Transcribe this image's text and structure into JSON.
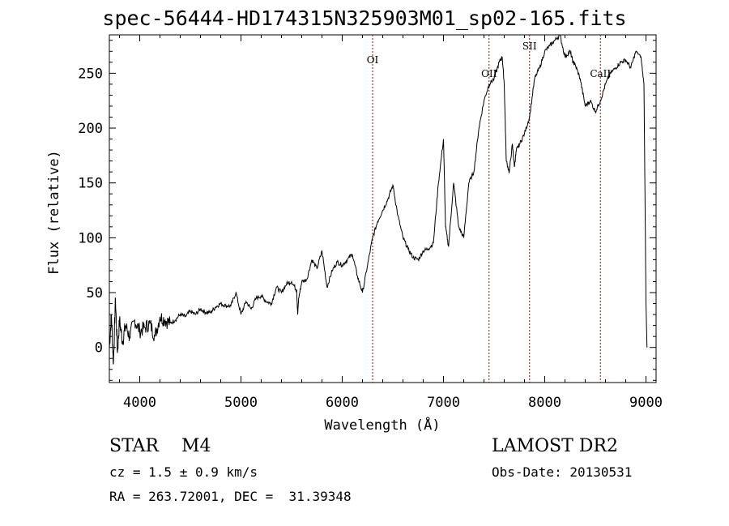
{
  "chart_data": {
    "type": "line",
    "title": "spec-56444-HD174315N325903M01_sp02-165.fits",
    "xlabel": "Wavelength (Å)",
    "ylabel": "Flux (relative)",
    "xlim": [
      3700,
      9100
    ],
    "ylim": [
      -32,
      285
    ],
    "xticks": [
      4000,
      5000,
      6000,
      7000,
      8000,
      9000
    ],
    "yticks": [
      0,
      50,
      100,
      150,
      200,
      250
    ],
    "grid": false,
    "line_color": "#000000",
    "marker_color": "#aa0000",
    "series": [
      {
        "x": [
          3700,
          3720,
          3740,
          3760,
          3780,
          3800,
          3830,
          3860,
          3900,
          3950,
          4000,
          4050,
          4100,
          4150,
          4200,
          4250,
          4300,
          4350,
          4400,
          4450,
          4500,
          4550,
          4600,
          4650,
          4700,
          4750,
          4800,
          4850,
          4900,
          4950,
          5000,
          5050,
          5100,
          5150,
          5200,
          5250,
          5300,
          5350,
          5400,
          5450,
          5500,
          5550,
          5560,
          5570,
          5600,
          5650,
          5700,
          5750,
          5800,
          5850,
          5900,
          5950,
          6000,
          6050,
          6100,
          6150,
          6200,
          6250,
          6300,
          6350,
          6400,
          6450,
          6500,
          6550,
          6600,
          6650,
          6700,
          6750,
          6800,
          6850,
          6900,
          6950,
          7000,
          7020,
          7050,
          7100,
          7150,
          7200,
          7250,
          7300,
          7350,
          7400,
          7450,
          7500,
          7550,
          7580,
          7600,
          7620,
          7650,
          7680,
          7700,
          7720,
          7750,
          7800,
          7850,
          7900,
          7950,
          8000,
          8050,
          8100,
          8150,
          8200,
          8250,
          8280,
          8300,
          8350,
          8400,
          8450,
          8500,
          8550,
          8600,
          8650,
          8700,
          8750,
          8800,
          8850,
          8900,
          8950,
          8980,
          9000,
          9010
        ],
        "y": [
          0,
          30,
          -15,
          45,
          -5,
          25,
          5,
          20,
          10,
          25,
          15,
          18,
          22,
          10,
          28,
          25,
          22,
          25,
          30,
          28,
          33,
          30,
          35,
          32,
          32,
          37,
          40,
          38,
          38,
          50,
          30,
          42,
          35,
          45,
          47,
          42,
          40,
          55,
          50,
          58,
          60,
          52,
          30,
          45,
          60,
          62,
          80,
          72,
          88,
          55,
          70,
          78,
          75,
          80,
          85,
          65,
          50,
          75,
          100,
          115,
          125,
          135,
          148,
          120,
          100,
          90,
          82,
          80,
          88,
          90,
          95,
          150,
          190,
          110,
          92,
          150,
          110,
          100,
          150,
          160,
          200,
          225,
          240,
          245,
          260,
          265,
          240,
          170,
          160,
          185,
          165,
          180,
          185,
          195,
          210,
          245,
          255,
          270,
          275,
          280,
          285,
          265,
          270,
          260,
          258,
          245,
          220,
          225,
          215,
          225,
          240,
          250,
          255,
          260,
          262,
          255,
          270,
          265,
          240,
          40,
          0
        ]
      }
    ],
    "lines": [
      {
        "label": "OI",
        "x": 6300
      },
      {
        "label": "OII",
        "x": 7450
      },
      {
        "label": "SII",
        "x": 7850
      },
      {
        "label": "CaII",
        "x": 8550
      }
    ]
  },
  "info": {
    "object_class": "STAR",
    "subclass": "M4",
    "survey": "LAMOST DR2",
    "redshift_line": "cz = 1.5 ± 0.9 km/s",
    "obs_date": "Obs-Date: 20130531",
    "coords_line": "RA = 263.72001, DEC =  31.39348"
  }
}
